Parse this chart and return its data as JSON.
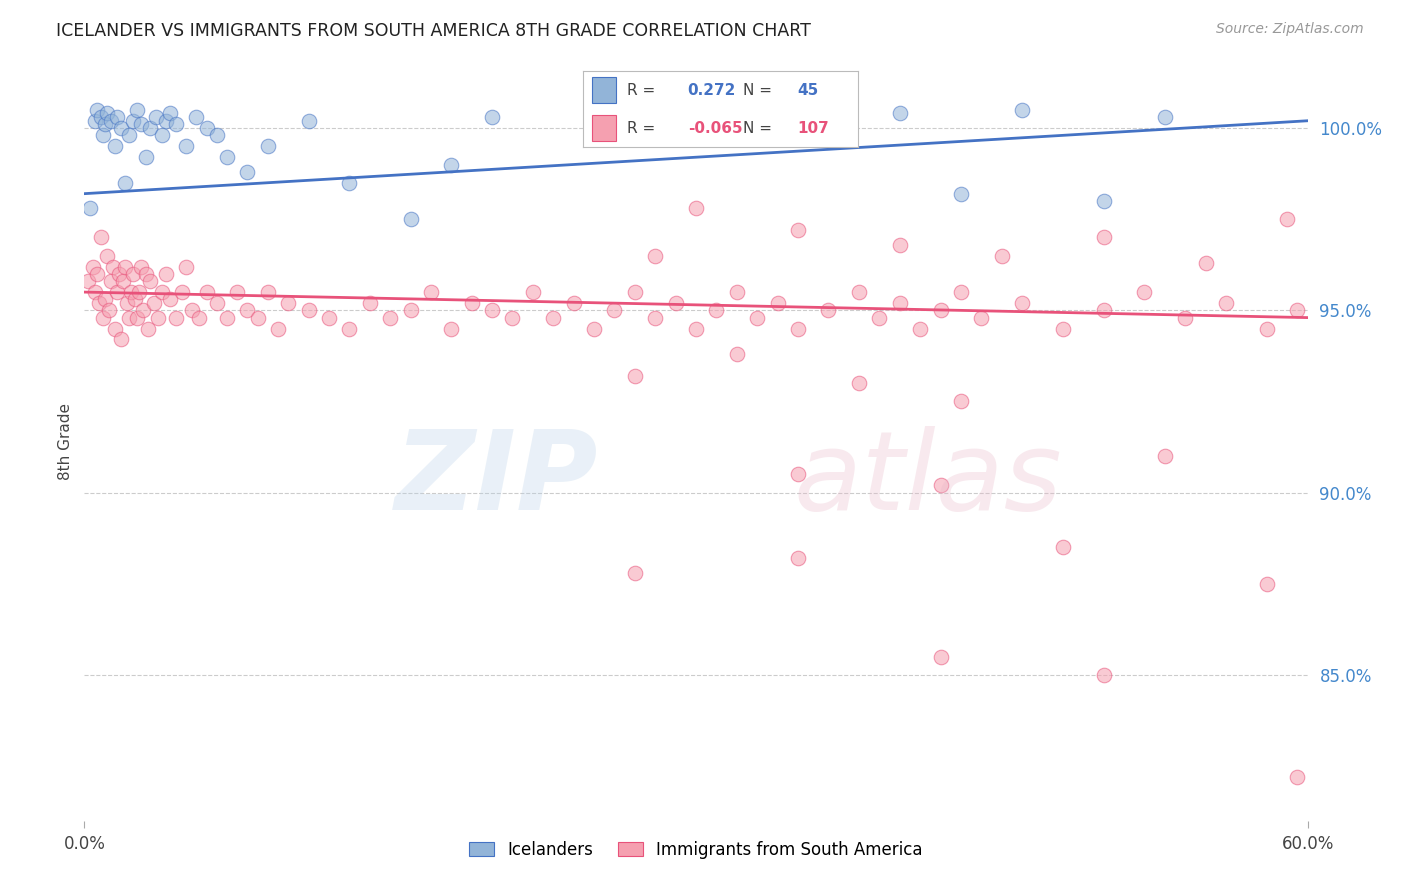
{
  "title": "ICELANDER VS IMMIGRANTS FROM SOUTH AMERICA 8TH GRADE CORRELATION CHART",
  "source": "Source: ZipAtlas.com",
  "ylabel": "8th Grade",
  "xlim": [
    0.0,
    60.0
  ],
  "ylim": [
    81.0,
    101.8
  ],
  "yticks": [
    85.0,
    90.0,
    95.0,
    100.0
  ],
  "ytick_labels": [
    "85.0%",
    "90.0%",
    "95.0%",
    "100.0%"
  ],
  "blue_R": 0.272,
  "blue_N": 45,
  "pink_R": -0.065,
  "pink_N": 107,
  "blue_color": "#92B4D8",
  "pink_color": "#F5A0B0",
  "blue_line_color": "#4472C4",
  "pink_line_color": "#E8527A",
  "legend_blue": "Icelanders",
  "legend_pink": "Immigrants from South America",
  "blue_scatter_x": [
    0.3,
    0.5,
    0.6,
    0.8,
    0.9,
    1.0,
    1.1,
    1.3,
    1.5,
    1.6,
    1.8,
    2.0,
    2.2,
    2.4,
    2.6,
    2.8,
    3.0,
    3.2,
    3.5,
    3.8,
    4.0,
    4.2,
    4.5,
    5.0,
    5.5,
    6.0,
    6.5,
    7.0,
    8.0,
    9.0,
    11.0,
    13.0,
    16.0,
    18.0,
    20.0,
    25.0,
    28.0,
    30.0,
    33.0,
    36.0,
    40.0,
    43.0,
    46.0,
    50.0,
    53.0
  ],
  "blue_scatter_y": [
    97.8,
    100.2,
    100.5,
    100.3,
    99.8,
    100.1,
    100.4,
    100.2,
    99.5,
    100.3,
    100.0,
    98.5,
    99.8,
    100.2,
    100.5,
    100.1,
    99.2,
    100.0,
    100.3,
    99.8,
    100.2,
    100.4,
    100.1,
    99.5,
    100.3,
    100.0,
    99.8,
    99.2,
    98.8,
    99.5,
    100.2,
    98.5,
    97.5,
    99.0,
    100.3,
    99.8,
    100.2,
    100.5,
    100.3,
    100.1,
    100.4,
    98.2,
    100.5,
    98.0,
    100.3
  ],
  "pink_scatter_x": [
    0.2,
    0.4,
    0.5,
    0.6,
    0.7,
    0.8,
    0.9,
    1.0,
    1.1,
    1.2,
    1.3,
    1.4,
    1.5,
    1.6,
    1.7,
    1.8,
    1.9,
    2.0,
    2.1,
    2.2,
    2.3,
    2.4,
    2.5,
    2.6,
    2.7,
    2.8,
    2.9,
    3.0,
    3.1,
    3.2,
    3.4,
    3.6,
    3.8,
    4.0,
    4.2,
    4.5,
    4.8,
    5.0,
    5.3,
    5.6,
    6.0,
    6.5,
    7.0,
    7.5,
    8.0,
    8.5,
    9.0,
    9.5,
    10.0,
    11.0,
    12.0,
    13.0,
    14.0,
    15.0,
    16.0,
    17.0,
    18.0,
    19.0,
    20.0,
    21.0,
    22.0,
    23.0,
    24.0,
    25.0,
    26.0,
    27.0,
    28.0,
    29.0,
    30.0,
    31.0,
    32.0,
    33.0,
    34.0,
    35.0,
    36.5,
    38.0,
    39.0,
    40.0,
    41.0,
    42.0,
    43.0,
    44.0,
    46.0,
    48.0,
    50.0,
    52.0,
    54.0,
    56.0,
    58.0,
    59.5,
    27.0,
    32.0,
    38.0,
    43.0,
    48.0,
    53.0,
    58.0,
    28.0,
    30.0,
    35.0,
    40.0,
    45.0,
    50.0,
    55.0,
    59.0,
    35.0,
    42.0
  ],
  "pink_scatter_y": [
    95.8,
    96.2,
    95.5,
    96.0,
    95.2,
    97.0,
    94.8,
    95.3,
    96.5,
    95.0,
    95.8,
    96.2,
    94.5,
    95.5,
    96.0,
    94.2,
    95.8,
    96.2,
    95.2,
    94.8,
    95.5,
    96.0,
    95.3,
    94.8,
    95.5,
    96.2,
    95.0,
    96.0,
    94.5,
    95.8,
    95.2,
    94.8,
    95.5,
    96.0,
    95.3,
    94.8,
    95.5,
    96.2,
    95.0,
    94.8,
    95.5,
    95.2,
    94.8,
    95.5,
    95.0,
    94.8,
    95.5,
    94.5,
    95.2,
    95.0,
    94.8,
    94.5,
    95.2,
    94.8,
    95.0,
    95.5,
    94.5,
    95.2,
    95.0,
    94.8,
    95.5,
    94.8,
    95.2,
    94.5,
    95.0,
    95.5,
    94.8,
    95.2,
    94.5,
    95.0,
    95.5,
    94.8,
    95.2,
    94.5,
    95.0,
    95.5,
    94.8,
    95.2,
    94.5,
    95.0,
    95.5,
    94.8,
    95.2,
    94.5,
    95.0,
    95.5,
    94.8,
    95.2,
    94.5,
    95.0,
    93.2,
    93.8,
    93.0,
    92.5,
    88.5,
    91.0,
    87.5,
    96.5,
    97.8,
    97.2,
    96.8,
    96.5,
    97.0,
    96.3,
    97.5,
    90.5,
    90.2
  ],
  "pink_isolated_x": [
    59.5,
    42.0,
    27.0,
    35.0,
    50.0
  ],
  "pink_isolated_y": [
    82.2,
    85.5,
    87.8,
    88.2,
    85.0
  ]
}
